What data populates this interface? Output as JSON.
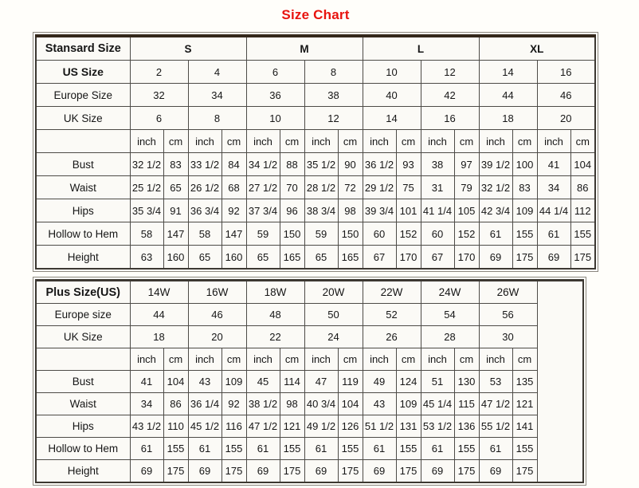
{
  "colors": {
    "title_red": "#e8130e",
    "grid_border": "#4d4b47",
    "outer_border": "#3c3832",
    "standard_top_band": "#34281c",
    "cell_background": "#fbfaf6"
  },
  "chart_data": {
    "type": "table",
    "title": "Size Chart",
    "tables": [
      {
        "name": "standard",
        "header_label": "Stansard Size",
        "top_cells": [
          "S",
          "M",
          "L",
          "XL"
        ],
        "size_rows": [
          {
            "label": "US Size",
            "bold": true,
            "values": [
              "2",
              "4",
              "6",
              "8",
              "10",
              "12",
              "14",
              "16"
            ]
          },
          {
            "label": "Europe Size",
            "values": [
              "32",
              "34",
              "36",
              "38",
              "40",
              "42",
              "44",
              "46"
            ]
          },
          {
            "label": "UK Size",
            "values": [
              "6",
              "8",
              "10",
              "12",
              "14",
              "16",
              "18",
              "20"
            ]
          }
        ],
        "units": [
          "inch",
          "cm"
        ],
        "measurement_rows": [
          {
            "label": "Bust",
            "values": [
              "32 1/2",
              "83",
              "33 1/2",
              "84",
              "34 1/2",
              "88",
              "35 1/2",
              "90",
              "36 1/2",
              "93",
              "38",
              "97",
              "39 1/2",
              "100",
              "41",
              "104"
            ]
          },
          {
            "label": "Waist",
            "values": [
              "25 1/2",
              "65",
              "26 1/2",
              "68",
              "27 1/2",
              "70",
              "28 1/2",
              "72",
              "29 1/2",
              "75",
              "31",
              "79",
              "32 1/2",
              "83",
              "34",
              "86"
            ]
          },
          {
            "label": "Hips",
            "values": [
              "35 3/4",
              "91",
              "36 3/4",
              "92",
              "37 3/4",
              "96",
              "38 3/4",
              "98",
              "39 3/4",
              "101",
              "41 1/4",
              "105",
              "42 3/4",
              "109",
              "44 1/4",
              "112"
            ]
          },
          {
            "label": "Hollow to Hem",
            "values": [
              "58",
              "147",
              "58",
              "147",
              "59",
              "150",
              "59",
              "150",
              "60",
              "152",
              "60",
              "152",
              "61",
              "155",
              "61",
              "155"
            ]
          },
          {
            "label": "Height",
            "values": [
              "63",
              "160",
              "65",
              "160",
              "65",
              "165",
              "65",
              "165",
              "67",
              "170",
              "67",
              "170",
              "69",
              "175",
              "69",
              "175"
            ]
          }
        ],
        "trailing_empty_col": false
      },
      {
        "name": "plus",
        "header_label": "Plus Size(US)",
        "top_cells": [
          "14W",
          "16W",
          "18W",
          "20W",
          "22W",
          "24W",
          "26W"
        ],
        "size_rows": [
          {
            "label": "Europe size",
            "values": [
              "44",
              "46",
              "48",
              "50",
              "52",
              "54",
              "56"
            ]
          },
          {
            "label": "UK Size",
            "values": [
              "18",
              "20",
              "22",
              "24",
              "26",
              "28",
              "30"
            ]
          }
        ],
        "units": [
          "inch",
          "cm"
        ],
        "measurement_rows": [
          {
            "label": "Bust",
            "values": [
              "41",
              "104",
              "43",
              "109",
              "45",
              "114",
              "47",
              "119",
              "49",
              "124",
              "51",
              "130",
              "53",
              "135"
            ]
          },
          {
            "label": "Waist",
            "values": [
              "34",
              "86",
              "36 1/4",
              "92",
              "38 1/2",
              "98",
              "40 3/4",
              "104",
              "43",
              "109",
              "45 1/4",
              "115",
              "47 1/2",
              "121"
            ]
          },
          {
            "label": "Hips",
            "values": [
              "43 1/2",
              "110",
              "45 1/2",
              "116",
              "47 1/2",
              "121",
              "49 1/2",
              "126",
              "51 1/2",
              "131",
              "53 1/2",
              "136",
              "55 1/2",
              "141"
            ]
          },
          {
            "label": "Hollow to Hem",
            "values": [
              "61",
              "155",
              "61",
              "155",
              "61",
              "155",
              "61",
              "155",
              "61",
              "155",
              "61",
              "155",
              "61",
              "155"
            ]
          },
          {
            "label": "Height",
            "values": [
              "69",
              "175",
              "69",
              "175",
              "69",
              "175",
              "69",
              "175",
              "69",
              "175",
              "69",
              "175",
              "69",
              "175"
            ]
          }
        ],
        "trailing_empty_col": true
      }
    ]
  }
}
